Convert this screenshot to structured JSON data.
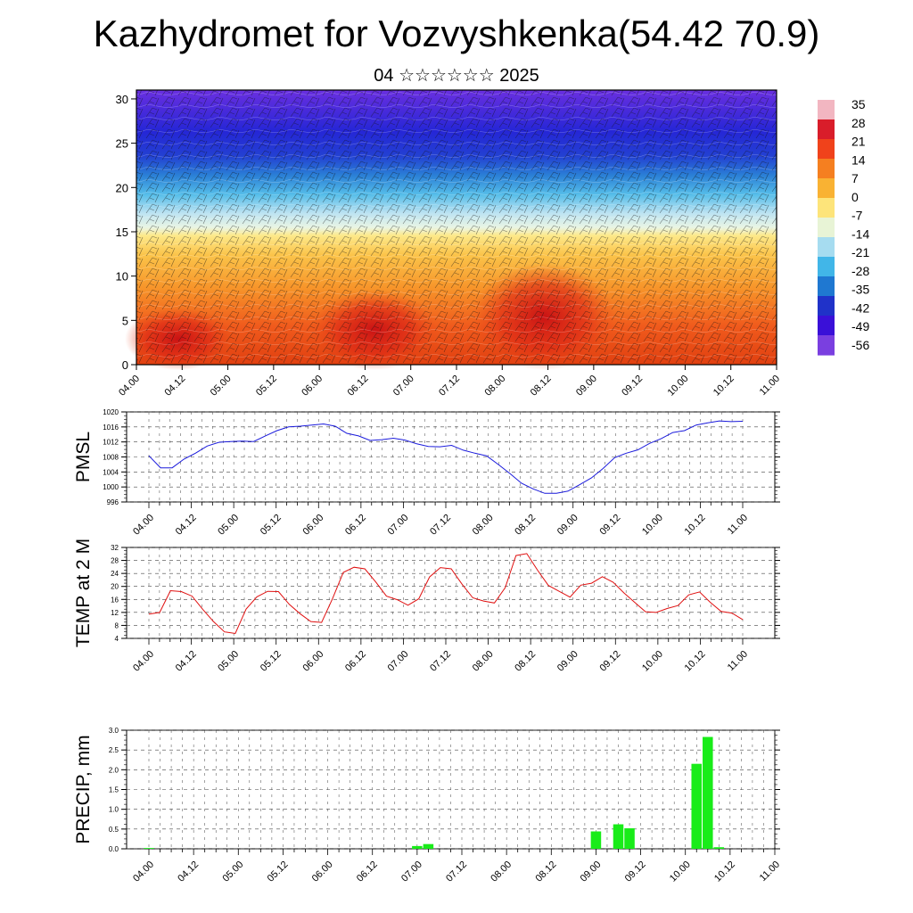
{
  "title": "Kazhydromet for Vozvyshkenka(54.42 70.9)",
  "subtitle": "04 ☆☆☆☆☆☆ 2025",
  "chart_data": [
    {
      "type": "heatmap",
      "name": "cross-section",
      "title": "",
      "xlabel": "",
      "ylabel": "",
      "x_ticks": [
        "04.00",
        "04.12",
        "05.00",
        "05.12",
        "06.00",
        "06.12",
        "07.00",
        "07.12",
        "08.00",
        "08.12",
        "09.00",
        "09.12",
        "10.00",
        "10.12",
        "11.00"
      ],
      "y_ticks": [
        0,
        5,
        10,
        15,
        20,
        25,
        30
      ],
      "ylim": [
        0,
        31
      ],
      "colorbar_labels": [
        35,
        28,
        21,
        14,
        7,
        0,
        -7,
        -14,
        -21,
        -28,
        -35,
        -42,
        -49,
        -56
      ],
      "colorbar_colors": [
        "#f2b6c1",
        "#d91d2a",
        "#f0421b",
        "#f57f20",
        "#f9b233",
        "#fde47a",
        "#e8f4d6",
        "#a6dcf0",
        "#41b6e8",
        "#1f78d1",
        "#2032c9",
        "#3a10d8",
        "#7a3fe0"
      ]
    },
    {
      "type": "line",
      "name": "PMSL",
      "ylabel": "PMSL",
      "ylim": [
        996,
        1020
      ],
      "y_ticks": [
        996,
        1000,
        1004,
        1008,
        1012,
        1016,
        1020
      ],
      "x_ticks": [
        "04.00",
        "04.12",
        "05.00",
        "05.12",
        "06.00",
        "06.12",
        "07.00",
        "07.12",
        "08.00",
        "08.12",
        "09.00",
        "09.12",
        "10.00",
        "10.12",
        "11.00"
      ],
      "color": "#1a1adc",
      "values": [
        1008.3,
        1005.1,
        1005.1,
        1007.4,
        1009.0,
        1010.9,
        1011.9,
        1012.1,
        1012.2,
        1012.1,
        1013.6,
        1015.0,
        1016.0,
        1016.2,
        1016.5,
        1016.8,
        1016.2,
        1014.3,
        1013.6,
        1012.4,
        1012.6,
        1013.0,
        1012.5,
        1011.5,
        1010.8,
        1010.7,
        1011.1,
        1009.8,
        1009.0,
        1008.3,
        1006.0,
        1003.6,
        1001.0,
        999.5,
        998.3,
        998.3,
        998.9,
        1000.6,
        1002.4,
        1004.9,
        1007.8,
        1009.0,
        1009.9,
        1011.6,
        1012.9,
        1014.5,
        1015.0,
        1016.5,
        1017.1,
        1017.6,
        1017.4,
        1017.5
      ]
    },
    {
      "type": "line",
      "name": "TEMP at 2 M",
      "ylabel": "TEMP at 2 M",
      "ylim": [
        4,
        32
      ],
      "y_ticks": [
        4,
        8,
        12,
        16,
        20,
        24,
        28,
        32
      ],
      "x_ticks": [
        "04.00",
        "04.12",
        "05.00",
        "05.12",
        "06.00",
        "06.12",
        "07.00",
        "07.12",
        "08.00",
        "08.12",
        "09.00",
        "09.12",
        "10.00",
        "10.12",
        "11.00"
      ],
      "color": "#e01010",
      "values": [
        11.5,
        12.0,
        18.7,
        18.4,
        17.0,
        12.9,
        9.1,
        6.0,
        5.5,
        13.0,
        16.8,
        18.5,
        18.4,
        14.5,
        11.6,
        9.2,
        8.9,
        16.2,
        24.3,
        25.9,
        25.4,
        21.4,
        17.0,
        15.9,
        14.2,
        16.2,
        22.9,
        25.8,
        25.4,
        20.7,
        16.5,
        15.5,
        14.9,
        19.6,
        29.5,
        30.1,
        25.0,
        20.3,
        18.5,
        16.7,
        20.4,
        21.0,
        23.0,
        21.3,
        18.0,
        15.1,
        12.2,
        12.0,
        13.2,
        14.1,
        17.4,
        18.3,
        15.1,
        12.3,
        11.8,
        9.8
      ]
    },
    {
      "type": "bar",
      "name": "PRECIP, mm",
      "ylabel": "PRECIP, mm",
      "ylim": [
        0,
        3.0
      ],
      "y_ticks": [
        "0.0",
        "0.5",
        "1.0",
        "1.5",
        "2.0",
        "2.5",
        "3.0"
      ],
      "x_ticks": [
        "04.00",
        "04.12",
        "05.00",
        "05.12",
        "06.00",
        "06.12",
        "07.00",
        "07.12",
        "08.00",
        "08.12",
        "09.00",
        "09.12",
        "10.00",
        "10.12",
        "11.00"
      ],
      "color": "#19ec19",
      "x": [
        0,
        24,
        25,
        40,
        42,
        43,
        49,
        50,
        51
      ],
      "values": [
        0.02,
        0.07,
        0.12,
        0.44,
        0.62,
        0.52,
        2.15,
        2.83,
        0.04
      ]
    }
  ]
}
